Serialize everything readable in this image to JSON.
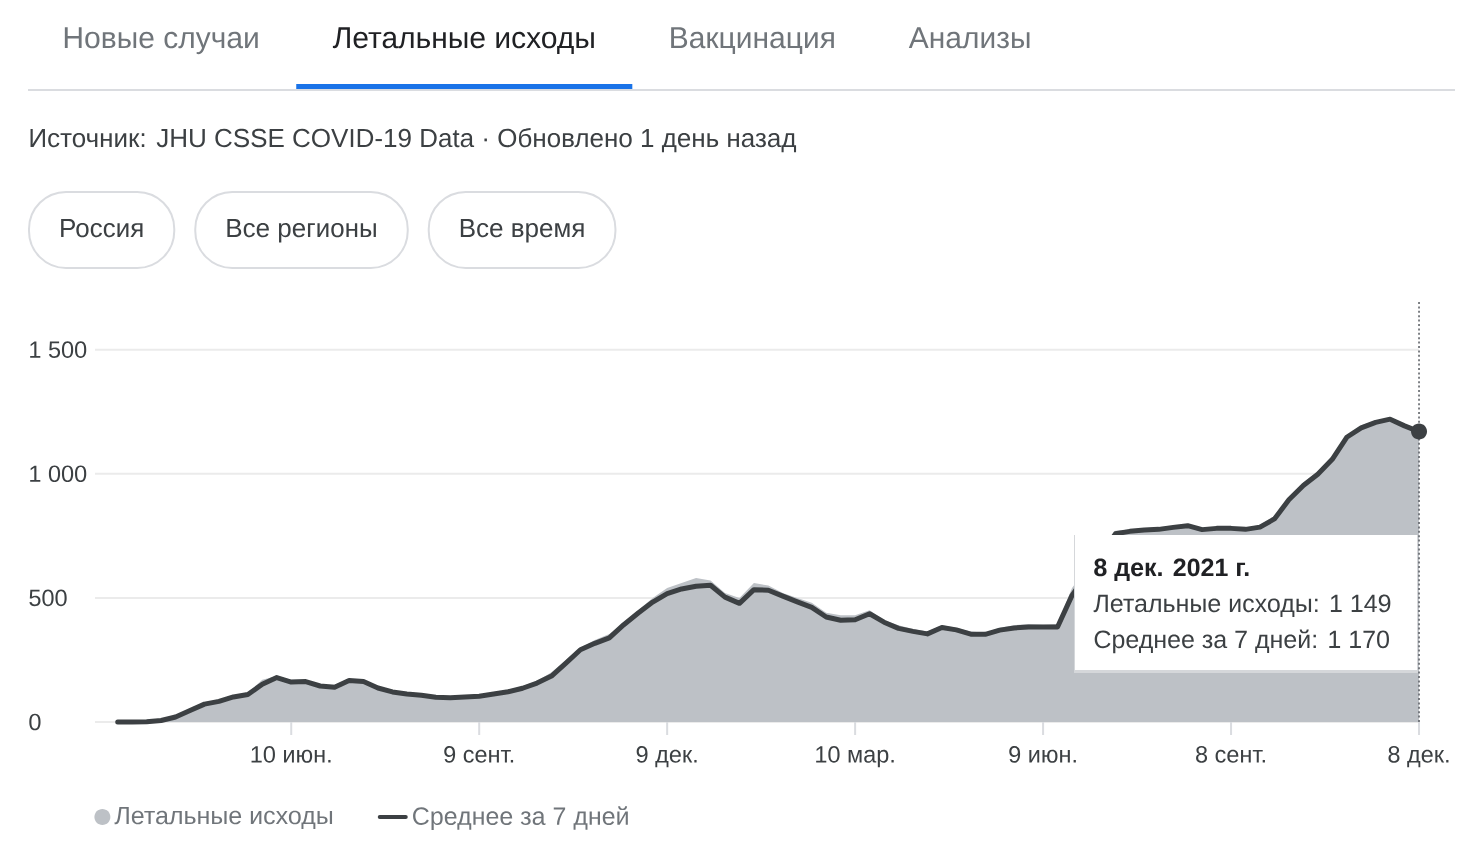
{
  "chart_data": {
    "type": "area",
    "title": "Летальные исходы",
    "subtitle": "Источник: JHU CSSE COVID-19 Data · Обновлено 1 день назад",
    "annotations": [
      "Новые случаи",
      "Вакцинация",
      "Анализы",
      "Россия",
      "Все регионы",
      "Все время",
      "8 дек. 2021 г.",
      "Летальные исходы: 1 149",
      "Среднее за 7 дней: 1 170"
    ],
    "x": [
      "2020-03-18",
      "2020-03-25",
      "2020-04-01",
      "2020-04-08",
      "2020-04-15",
      "2020-04-22",
      "2020-04-29",
      "2020-05-06",
      "2020-05-13",
      "2020-05-20",
      "2020-05-27",
      "2020-06-03",
      "2020-06-10",
      "2020-06-17",
      "2020-06-24",
      "2020-07-01",
      "2020-07-08",
      "2020-07-15",
      "2020-07-22",
      "2020-07-29",
      "2020-08-05",
      "2020-08-12",
      "2020-08-19",
      "2020-08-26",
      "2020-09-02",
      "2020-09-09",
      "2020-09-16",
      "2020-09-23",
      "2020-09-30",
      "2020-10-07",
      "2020-10-14",
      "2020-10-21",
      "2020-10-28",
      "2020-11-04",
      "2020-11-11",
      "2020-11-18",
      "2020-11-25",
      "2020-12-02",
      "2020-12-09",
      "2020-12-16",
      "2020-12-23",
      "2020-12-30",
      "2021-01-06",
      "2021-01-13",
      "2021-01-20",
      "2021-01-27",
      "2021-02-03",
      "2021-02-10",
      "2021-02-17",
      "2021-02-24",
      "2021-03-03",
      "2021-03-10",
      "2021-03-17",
      "2021-03-24",
      "2021-03-31",
      "2021-04-07",
      "2021-04-14",
      "2021-04-21",
      "2021-04-28",
      "2021-05-05",
      "2021-05-12",
      "2021-05-19",
      "2021-05-26",
      "2021-06-02",
      "2021-06-09",
      "2021-06-16",
      "2021-06-23",
      "2021-07-14",
      "2021-07-21",
      "2021-07-28",
      "2021-08-04",
      "2021-08-11",
      "2021-08-18",
      "2021-08-25",
      "2021-09-01",
      "2021-09-08",
      "2021-09-15",
      "2021-09-22",
      "2021-09-29",
      "2021-10-06",
      "2021-10-13",
      "2021-10-20",
      "2021-10-27",
      "2021-11-03",
      "2021-11-10",
      "2021-11-17",
      "2021-11-24",
      "2021-12-01",
      "2021-12-08"
    ],
    "series": [
      {
        "name": "Летальные исходы",
        "color": "#bdc1c6",
        "values": [
          0,
          0,
          2,
          8,
          24,
          50,
          80,
          90,
          104,
          118,
          170,
          185,
          170,
          170,
          150,
          150,
          175,
          165,
          145,
          125,
          118,
          112,
          104,
          100,
          108,
          110,
          120,
          128,
          145,
          165,
          200,
          250,
          300,
          330,
          355,
          400,
          450,
          500,
          540,
          560,
          580,
          570,
          520,
          500,
          560,
          550,
          520,
          500,
          480,
          440,
          430,
          430,
          450,
          410,
          390,
          375,
          365,
          390,
          380,
          365,
          360,
          380,
          390,
          395,
          392,
          395,
          540,
          770,
          775,
          780,
          785,
          790,
          795,
          780,
          785,
          785,
          780,
          795,
          830,
          905,
          965,
          1010,
          1070,
          1155,
          1195,
          1215,
          1225,
          1200,
          1149
        ]
      },
      {
        "name": "Среднее за 7 дней",
        "type": "line",
        "color": "#3c4043",
        "values": [
          0,
          0,
          1,
          6,
          20,
          46,
          72,
          83,
          101,
          111,
          152,
          179,
          161,
          163,
          145,
          140,
          167,
          163,
          137,
          121,
          113,
          108,
          100,
          98,
          101,
          104,
          113,
          122,
          136,
          157,
          185,
          237,
          291,
          317,
          339,
          392,
          439,
          483,
          517,
          536,
          547,
          551,
          503,
          478,
          533,
          531,
          507,
          484,
          462,
          423,
          410,
          412,
          436,
          402,
          377,
          365,
          355,
          381,
          371,
          354,
          353,
          370,
          379,
          383,
          383,
          383,
          510,
          758,
          768,
          773,
          776,
          784,
          791,
          775,
          780,
          780,
          776,
          785,
          818,
          895,
          953,
          998,
          1058,
          1147,
          1185,
          1207,
          1220,
          1193,
          1170
        ]
      }
    ],
    "xlim": [
      "2020-03-07",
      "2021-12-08"
    ],
    "xticks": [
      {
        "value": "2020-06-10",
        "label": "10 июн."
      },
      {
        "value": "2020-09-09",
        "label": "9 сент."
      },
      {
        "value": "2020-12-09",
        "label": "9 дек."
      },
      {
        "value": "2021-03-10",
        "label": "10 мар."
      },
      {
        "value": "2021-06-09",
        "label": "9 июн."
      },
      {
        "value": "2021-09-08",
        "label": "8 сент."
      },
      {
        "value": "2021-12-08",
        "label": "8 дек."
      }
    ],
    "ylim": [
      0,
      1700
    ],
    "yticks": [
      0,
      500,
      {
        "value": 1000,
        "label": "1 000"
      },
      {
        "value": 1500,
        "label": "1 500"
      }
    ],
    "grid": "y",
    "legend": "bottom left",
    "ref_lines": [
      {
        "axis": "x",
        "value": "2021-12-08",
        "color": "#5f6368",
        "line_style": "dotted"
      }
    ]
  }
}
